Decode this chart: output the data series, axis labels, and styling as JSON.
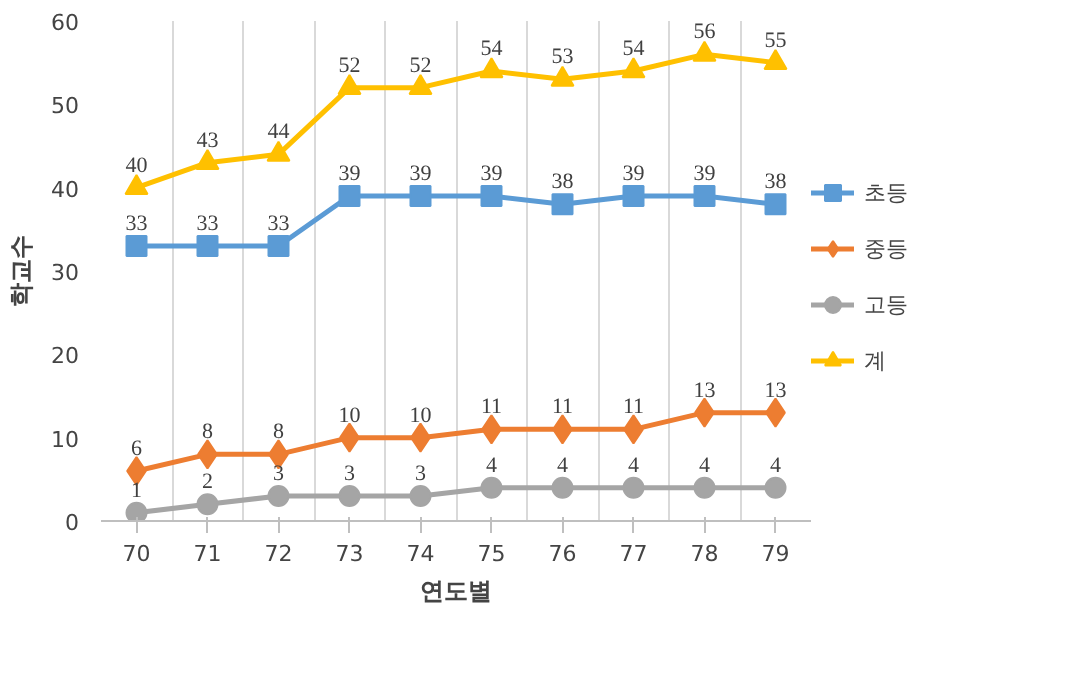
{
  "chart_data": {
    "type": "line",
    "xlabel": "연도별",
    "ylabel": "학교수",
    "categories": [
      "70",
      "71",
      "72",
      "73",
      "74",
      "75",
      "76",
      "77",
      "78",
      "79"
    ],
    "series": [
      {
        "name": "초등",
        "color": "#5b9bd5",
        "marker": "square",
        "values": [
          33,
          33,
          33,
          39,
          39,
          39,
          38,
          39,
          39,
          38
        ]
      },
      {
        "name": "중등",
        "color": "#ed7d31",
        "marker": "diamond",
        "values": [
          6,
          8,
          8,
          10,
          10,
          11,
          11,
          11,
          13,
          13
        ]
      },
      {
        "name": "고등",
        "color": "#a5a5a5",
        "marker": "circle",
        "values": [
          1,
          2,
          3,
          3,
          3,
          4,
          4,
          4,
          4,
          4
        ]
      },
      {
        "name": "계",
        "color": "#ffc000",
        "marker": "triangle",
        "values": [
          40,
          43,
          44,
          52,
          52,
          54,
          53,
          54,
          56,
          55
        ]
      }
    ],
    "ylim": [
      0,
      60
    ],
    "yticks": [
      0,
      10,
      20,
      30,
      40,
      50,
      60
    ],
    "grid": "x",
    "legend": "right",
    "data_labels": true,
    "line_style": "solid"
  }
}
